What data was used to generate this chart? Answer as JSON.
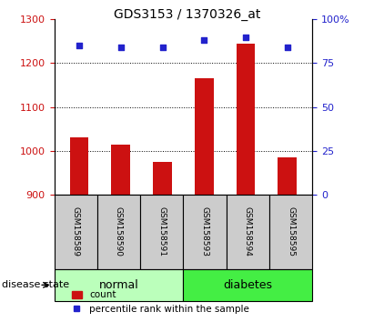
{
  "title": "GDS3153 / 1370326_at",
  "samples": [
    "GSM158589",
    "GSM158590",
    "GSM158591",
    "GSM158593",
    "GSM158594",
    "GSM158595"
  ],
  "counts": [
    1030,
    1015,
    975,
    1165,
    1245,
    985
  ],
  "percentiles": [
    85,
    84,
    84,
    88,
    90,
    84
  ],
  "ylim_left": [
    900,
    1300
  ],
  "ylim_right": [
    0,
    100
  ],
  "yticks_left": [
    900,
    1000,
    1100,
    1200,
    1300
  ],
  "yticks_right": [
    0,
    25,
    50,
    75,
    100
  ],
  "ytick_labels_right": [
    "0",
    "25",
    "50",
    "75",
    "100%"
  ],
  "bar_color": "#cc1111",
  "marker_color": "#2222cc",
  "groups": [
    {
      "label": "normal",
      "indices": [
        0,
        1,
        2
      ],
      "color": "#bbffbb"
    },
    {
      "label": "diabetes",
      "indices": [
        3,
        4,
        5
      ],
      "color": "#44ee44"
    }
  ],
  "group_label_prefix": "disease state",
  "legend_count_label": "count",
  "legend_percentile_label": "percentile rank within the sample",
  "title_fontsize": 10,
  "tick_fontsize": 8,
  "sample_fontsize": 6.5,
  "group_fontsize": 9,
  "legend_fontsize": 7.5,
  "bar_width": 0.45,
  "grid_color": "black",
  "grid_linestyle": ":",
  "background_color": "#ffffff",
  "sample_label_area_color": "#cccccc"
}
